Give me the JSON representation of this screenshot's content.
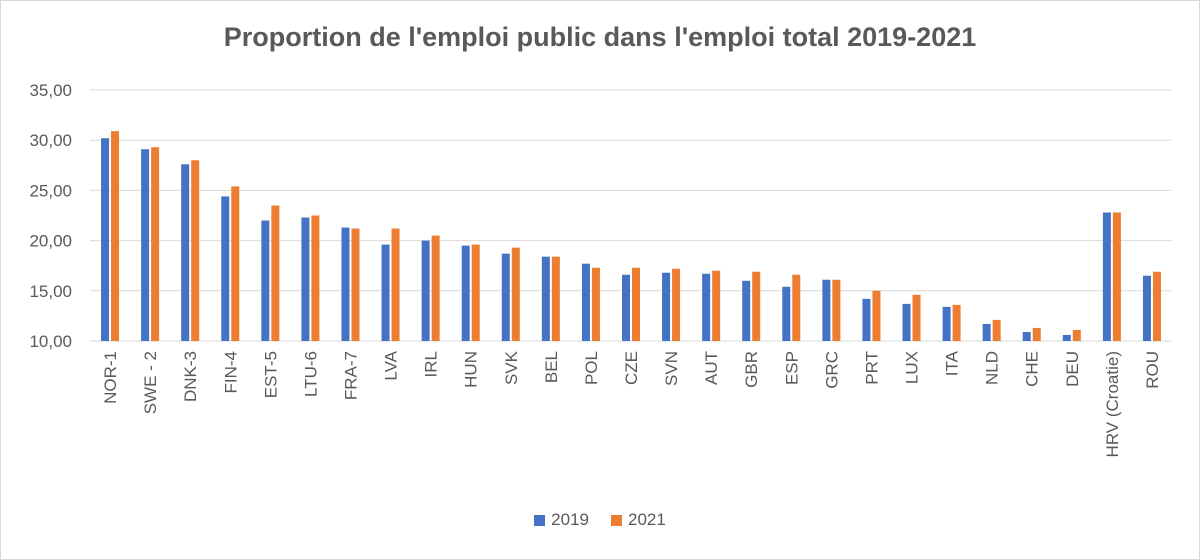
{
  "chart_data": {
    "type": "bar",
    "title": "Proportion de l'emploi public dans l'emploi total 2019-2021",
    "xlabel": "",
    "ylabel": "",
    "ylim": [
      10,
      35
    ],
    "yticks": [
      "10,00",
      "15,00",
      "20,00",
      "25,00",
      "30,00",
      "35,00"
    ],
    "ytick_values": [
      10,
      15,
      20,
      25,
      30,
      35
    ],
    "grid": true,
    "legend_position": "bottom",
    "categories": [
      "NOR-1",
      "SWE - 2",
      "DNK-3",
      "FIN-4",
      "EST-5",
      "LTU-6",
      "FRA-7",
      "LVA",
      "IRL",
      "HUN",
      "SVK",
      "BEL",
      "POL",
      "CZE",
      "SVN",
      "AUT",
      "GBR",
      "ESP",
      "GRC",
      "PRT",
      "LUX",
      "ITA",
      "NLD",
      "CHE",
      "DEU",
      "HRV (Croatie)",
      "ROU"
    ],
    "series": [
      {
        "name": "2019",
        "color": "#4472c4",
        "values": [
          30.2,
          29.1,
          27.6,
          24.4,
          22.0,
          22.3,
          21.3,
          19.6,
          20.0,
          19.5,
          18.7,
          18.4,
          17.7,
          16.6,
          16.8,
          16.7,
          16.0,
          15.4,
          16.1,
          14.2,
          13.7,
          13.4,
          11.7,
          10.9,
          10.6,
          22.8,
          16.5
        ]
      },
      {
        "name": "2021",
        "color": "#ed7d31",
        "values": [
          30.9,
          29.3,
          28.0,
          25.4,
          23.5,
          22.5,
          21.2,
          21.2,
          20.5,
          19.6,
          19.3,
          18.4,
          17.3,
          17.3,
          17.2,
          17.0,
          16.9,
          16.6,
          16.1,
          15.0,
          14.6,
          13.6,
          12.1,
          11.3,
          11.1,
          22.8,
          16.9
        ]
      }
    ]
  }
}
